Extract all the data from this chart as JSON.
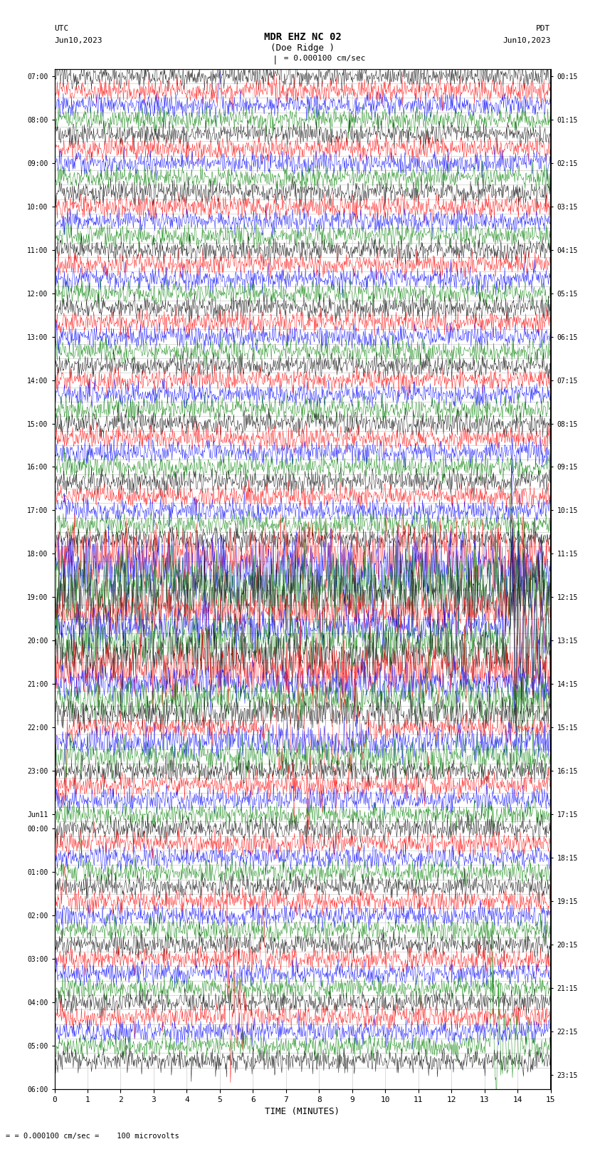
{
  "title_line1": "MDR EHZ NC 02",
  "title_line2": "(Doe Ridge )",
  "scale_text": "= 0.000100 cm/sec",
  "footer_text": "= 0.000100 cm/sec =    100 microvolts",
  "left_label_top": "UTC",
  "left_label_date": "Jun10,2023",
  "right_label_top": "PDT",
  "right_label_date": "Jun10,2023",
  "xlabel": "TIME (MINUTES)",
  "left_times": [
    "07:00",
    "",
    "",
    "08:00",
    "",
    "",
    "09:00",
    "",
    "",
    "10:00",
    "",
    "",
    "11:00",
    "",
    "",
    "12:00",
    "",
    "",
    "13:00",
    "",
    "",
    "14:00",
    "",
    "",
    "15:00",
    "",
    "",
    "16:00",
    "",
    "",
    "17:00",
    "",
    "",
    "18:00",
    "",
    "",
    "19:00",
    "",
    "",
    "20:00",
    "",
    "",
    "21:00",
    "",
    "",
    "22:00",
    "",
    "",
    "23:00",
    "",
    "",
    "Jun11",
    "00:00",
    "",
    "",
    "01:00",
    "",
    "",
    "02:00",
    "",
    "",
    "03:00",
    "",
    "",
    "04:00",
    "",
    "",
    "05:00",
    "",
    "",
    "06:00",
    "",
    ""
  ],
  "right_times": [
    "00:15",
    "",
    "",
    "01:15",
    "",
    "",
    "02:15",
    "",
    "",
    "03:15",
    "",
    "",
    "04:15",
    "",
    "",
    "05:15",
    "",
    "",
    "06:15",
    "",
    "",
    "07:15",
    "",
    "",
    "08:15",
    "",
    "",
    "09:15",
    "",
    "",
    "10:15",
    "",
    "",
    "11:15",
    "",
    "",
    "12:15",
    "",
    "",
    "13:15",
    "",
    "",
    "14:15",
    "",
    "",
    "15:15",
    "",
    "",
    "16:15",
    "",
    "",
    "17:15",
    "",
    "",
    "18:15",
    "",
    "",
    "19:15",
    "",
    "",
    "20:15",
    "",
    "",
    "21:15",
    "",
    "",
    "22:15",
    "",
    "",
    "23:15",
    "",
    ""
  ],
  "n_rows": 69,
  "n_cols": 900,
  "row_colors_cycle": [
    "black",
    "red",
    "blue",
    "green"
  ],
  "bg_color": "white",
  "line_color": "#cccccc",
  "x_ticks": [
    0,
    1,
    2,
    3,
    4,
    5,
    6,
    7,
    8,
    9,
    10,
    11,
    12,
    13,
    14,
    15
  ],
  "fig_width": 8.5,
  "fig_height": 16.13
}
